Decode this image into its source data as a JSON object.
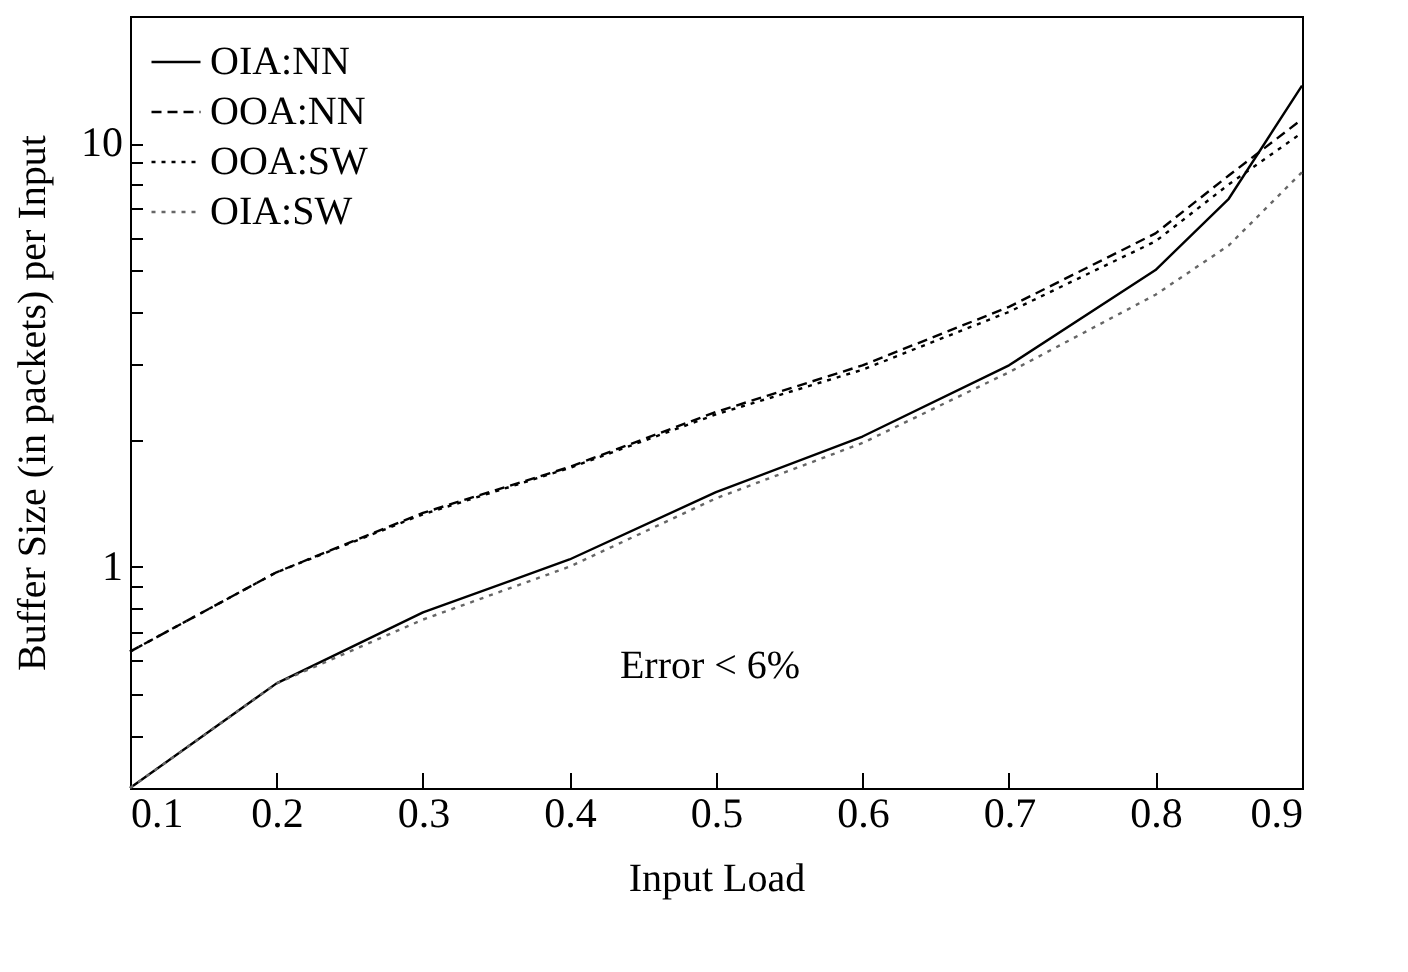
{
  "chart_data": {
    "type": "line",
    "xlabel": "Input Load",
    "ylabel": "Buffer Size (in packets) per Input",
    "annotations": [
      "Error < 6%"
    ],
    "log": "y",
    "grid": false,
    "legend": "top left",
    "marker": "none",
    "xlim": [
      0.1,
      0.9
    ],
    "xticks": [
      0.1,
      0.2,
      0.3,
      0.4,
      0.5,
      0.6,
      0.7,
      0.8,
      0.9
    ],
    "ylim": [
      0.3,
      20
    ],
    "yticks": [
      {
        "value": 0.3,
        "label": null
      },
      {
        "value": 0.4,
        "label": null
      },
      {
        "value": 0.5,
        "label": null
      },
      {
        "value": 0.6,
        "label": null
      },
      {
        "value": 0.7,
        "label": null
      },
      {
        "value": 0.8,
        "label": null
      },
      {
        "value": 0.9,
        "label": null
      },
      1,
      {
        "value": 2,
        "label": null
      },
      {
        "value": 3,
        "label": null
      },
      {
        "value": 4,
        "label": null
      },
      {
        "value": 5,
        "label": null
      },
      {
        "value": 6,
        "label": null
      },
      {
        "value": 7,
        "label": null
      },
      {
        "value": 8,
        "label": null
      },
      {
        "value": 9,
        "label": null
      },
      10
    ],
    "series": [
      {
        "name": "OIA:NN",
        "color": "#000000",
        "line_style": "solid",
        "x": [
          0.1,
          0.2,
          0.3,
          0.4,
          0.5,
          0.6,
          0.7,
          0.8,
          0.85,
          0.9
        ],
        "values": [
          0.3,
          0.53,
          0.78,
          1.04,
          1.5,
          2.03,
          2.99,
          5.02,
          7.4,
          13.7
        ]
      },
      {
        "name": "OOA:NN",
        "color": "#000000",
        "line_style": "dashed",
        "x": [
          0.1,
          0.2,
          0.3,
          0.4,
          0.5,
          0.6,
          0.7,
          0.8,
          0.85,
          0.9
        ],
        "values": [
          0.63,
          0.97,
          1.34,
          1.72,
          2.32,
          2.99,
          4.11,
          6.13,
          8.4,
          11.4
        ]
      },
      {
        "name": "OOA:SW",
        "color": "#000000",
        "line_style": "dotted",
        "x": [
          0.1,
          0.2,
          0.3,
          0.4,
          0.5,
          0.6,
          0.7,
          0.8,
          0.85,
          0.9
        ],
        "values": [
          0.63,
          0.97,
          1.33,
          1.71,
          2.29,
          2.92,
          4.0,
          5.87,
          8.0,
          10.6
        ]
      },
      {
        "name": "OIA:SW",
        "color": "#666666",
        "line_style": "dotted",
        "x": [
          0.1,
          0.2,
          0.3,
          0.4,
          0.5,
          0.6,
          0.7,
          0.8,
          0.85,
          0.9
        ],
        "values": [
          0.3,
          0.53,
          0.75,
          1.0,
          1.45,
          1.96,
          2.88,
          4.39,
          5.74,
          8.55
        ]
      }
    ]
  }
}
